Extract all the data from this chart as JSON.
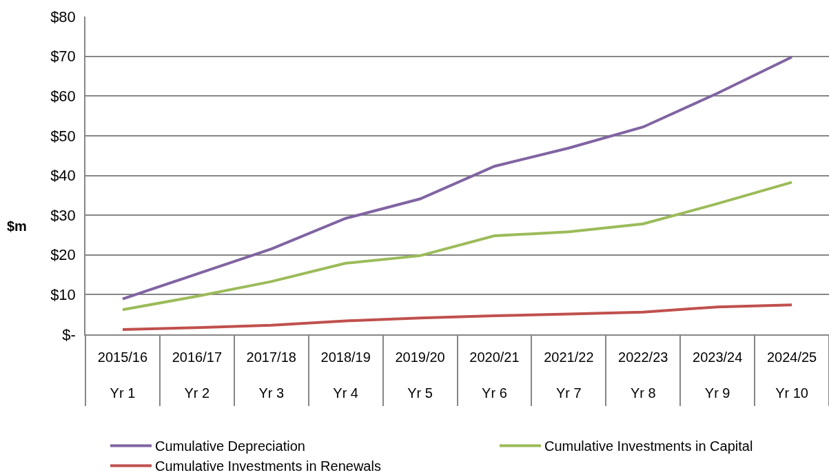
{
  "chart_data": {
    "type": "line",
    "ylabel": "$m",
    "categories": [
      "2015/16\nYr 1",
      "2016/17\nYr 2",
      "2017/18\nYr 3",
      "2018/19\nYr 4",
      "2019/20\nYr 5",
      "2020/21\nYr 6",
      "2021/22\nYr 7",
      "2022/23\nYr 8",
      "2023/24\nYr 9",
      "2024/25\nYr 10"
    ],
    "series": [
      {
        "name": "Cumulative Depreciation",
        "color": "#8064a2",
        "values": [
          8.9,
          15.2,
          21.5,
          29.2,
          34.1,
          42.3,
          46.9,
          52.2,
          60.7,
          69.8
        ]
      },
      {
        "name": "Cumulative Investments in Capital",
        "color": "#9bbb59",
        "values": [
          6.2,
          9.6,
          13.3,
          17.9,
          19.8,
          24.8,
          25.8,
          27.8,
          32.9,
          38.3
        ]
      },
      {
        "name": "Cumulative Investments in Renewals",
        "color": "#c0504d",
        "values": [
          1.2,
          1.7,
          2.3,
          3.4,
          4.1,
          4.7,
          5.1,
          5.6,
          6.9,
          7.4
        ]
      }
    ],
    "ylim": [
      0,
      80
    ],
    "yticks": [
      {
        "value": 0,
        "label": "$-"
      },
      {
        "value": 10,
        "label": "$10"
      },
      {
        "value": 20,
        "label": "$20"
      },
      {
        "value": 30,
        "label": "$30"
      },
      {
        "value": 40,
        "label": "$40"
      },
      {
        "value": 50,
        "label": "$50"
      },
      {
        "value": 60,
        "label": "$60"
      },
      {
        "value": 70,
        "label": "$70"
      },
      {
        "value": 80,
        "label": "$80"
      }
    ],
    "grid": "y",
    "legend": "bottom",
    "marker": "none",
    "line_style": "solid"
  }
}
